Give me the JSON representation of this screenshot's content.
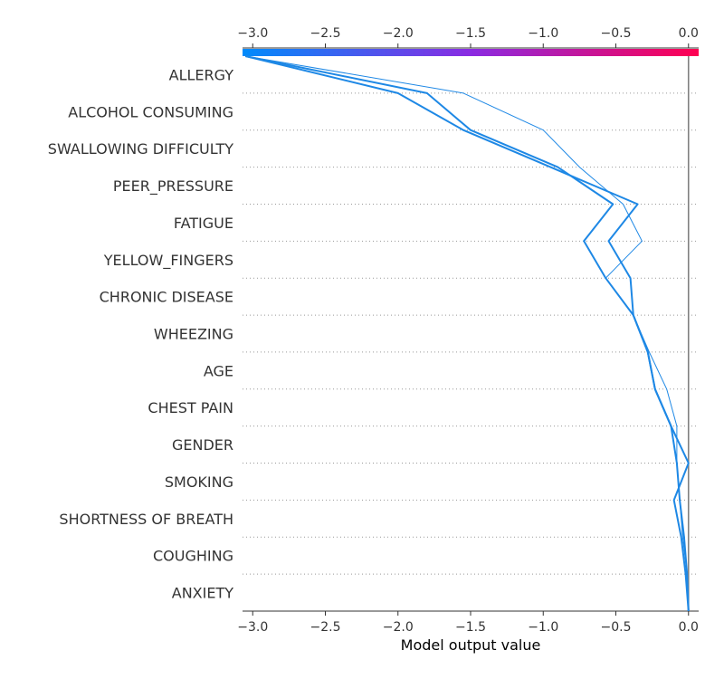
{
  "chart_data": {
    "type": "line",
    "subtype": "shap-decision-plot",
    "title": "",
    "xlabel": "Model output value",
    "ylabel": "",
    "xlim": [
      -3.07,
      0.07
    ],
    "base_value": 0.0,
    "xticks": [
      -3.0,
      -2.5,
      -2.0,
      -1.5,
      -1.0,
      -0.5,
      0.0
    ],
    "xtick_labels": [
      "−3.0",
      "−2.5",
      "−2.0",
      "−1.5",
      "−1.0",
      "−0.5",
      "0.0"
    ],
    "features": [
      "ALLERGY",
      "ALCOHOL CONSUMING",
      "SWALLOWING DIFFICULTY",
      "PEER_PRESSURE",
      "FATIGUE",
      "YELLOW_FINGERS",
      "CHRONIC DISEASE",
      "WHEEZING",
      "AGE",
      "CHEST PAIN",
      "GENDER",
      "SMOKING",
      "SHORTNESS OF BREATH",
      "COUGHING",
      "ANXIETY"
    ],
    "grid": "dotted horizontal",
    "colorbar": {
      "range": [
        -3.07,
        0.07
      ],
      "colors": [
        "#008bfb",
        "#ff0051"
      ]
    },
    "line_color": "#1e88e5",
    "series": [
      {
        "values": [
          -3.05,
          -2.0,
          -1.55,
          -0.95,
          -0.35,
          -0.55,
          -0.4,
          -0.38,
          -0.28,
          -0.23,
          -0.12,
          -0.08,
          -0.06,
          -0.03,
          -0.01,
          0.0
        ],
        "width": 2.0
      },
      {
        "values": [
          -3.05,
          -1.8,
          -1.5,
          -0.9,
          -0.52,
          -0.72,
          -0.57,
          -0.38,
          -0.28,
          -0.23,
          -0.12,
          0.0,
          -0.1,
          -0.05,
          -0.02,
          0.0
        ],
        "width": 2.0
      },
      {
        "values": [
          -3.05,
          -1.55,
          -1.0,
          -0.75,
          -0.45,
          -0.32,
          -0.57,
          -0.38,
          -0.27,
          -0.15,
          -0.08,
          -0.08,
          -0.06,
          -0.04,
          -0.01,
          0.0
        ],
        "width": 1.0
      }
    ]
  }
}
